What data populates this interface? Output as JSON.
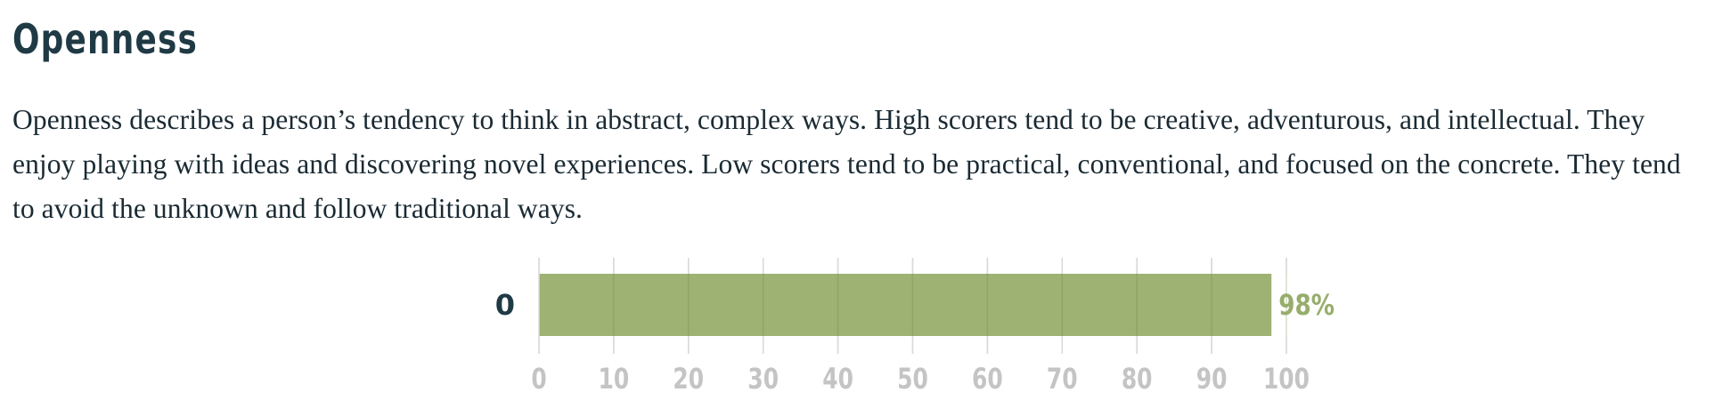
{
  "section": {
    "title": "Openness",
    "description": "Openness describes a person’s tendency to think in abstract, complex ways. High scorers tend to be creative, adventurous, and intellectual. They enjoy playing with ideas and discovering novel experiences. Low scorers tend to be practical, conventional, and focused on the concrete. They tend to avoid the unknown and follow traditional ways."
  },
  "colors": {
    "heading": "#1f3a45",
    "text": "#1a2a33",
    "bar": "#9db273",
    "value_label": "#97ad6b",
    "tick_label": "#c4c4c4",
    "grid": "#d9d9d9"
  },
  "chart_data": {
    "type": "bar",
    "orientation": "horizontal",
    "categories": [
      "0"
    ],
    "values": [
      98
    ],
    "value_labels": [
      "98%"
    ],
    "xlim": [
      0,
      100
    ],
    "xticks": [
      0,
      10,
      20,
      30,
      40,
      50,
      60,
      70,
      80,
      90,
      100
    ],
    "grid": true,
    "legend": "none"
  }
}
